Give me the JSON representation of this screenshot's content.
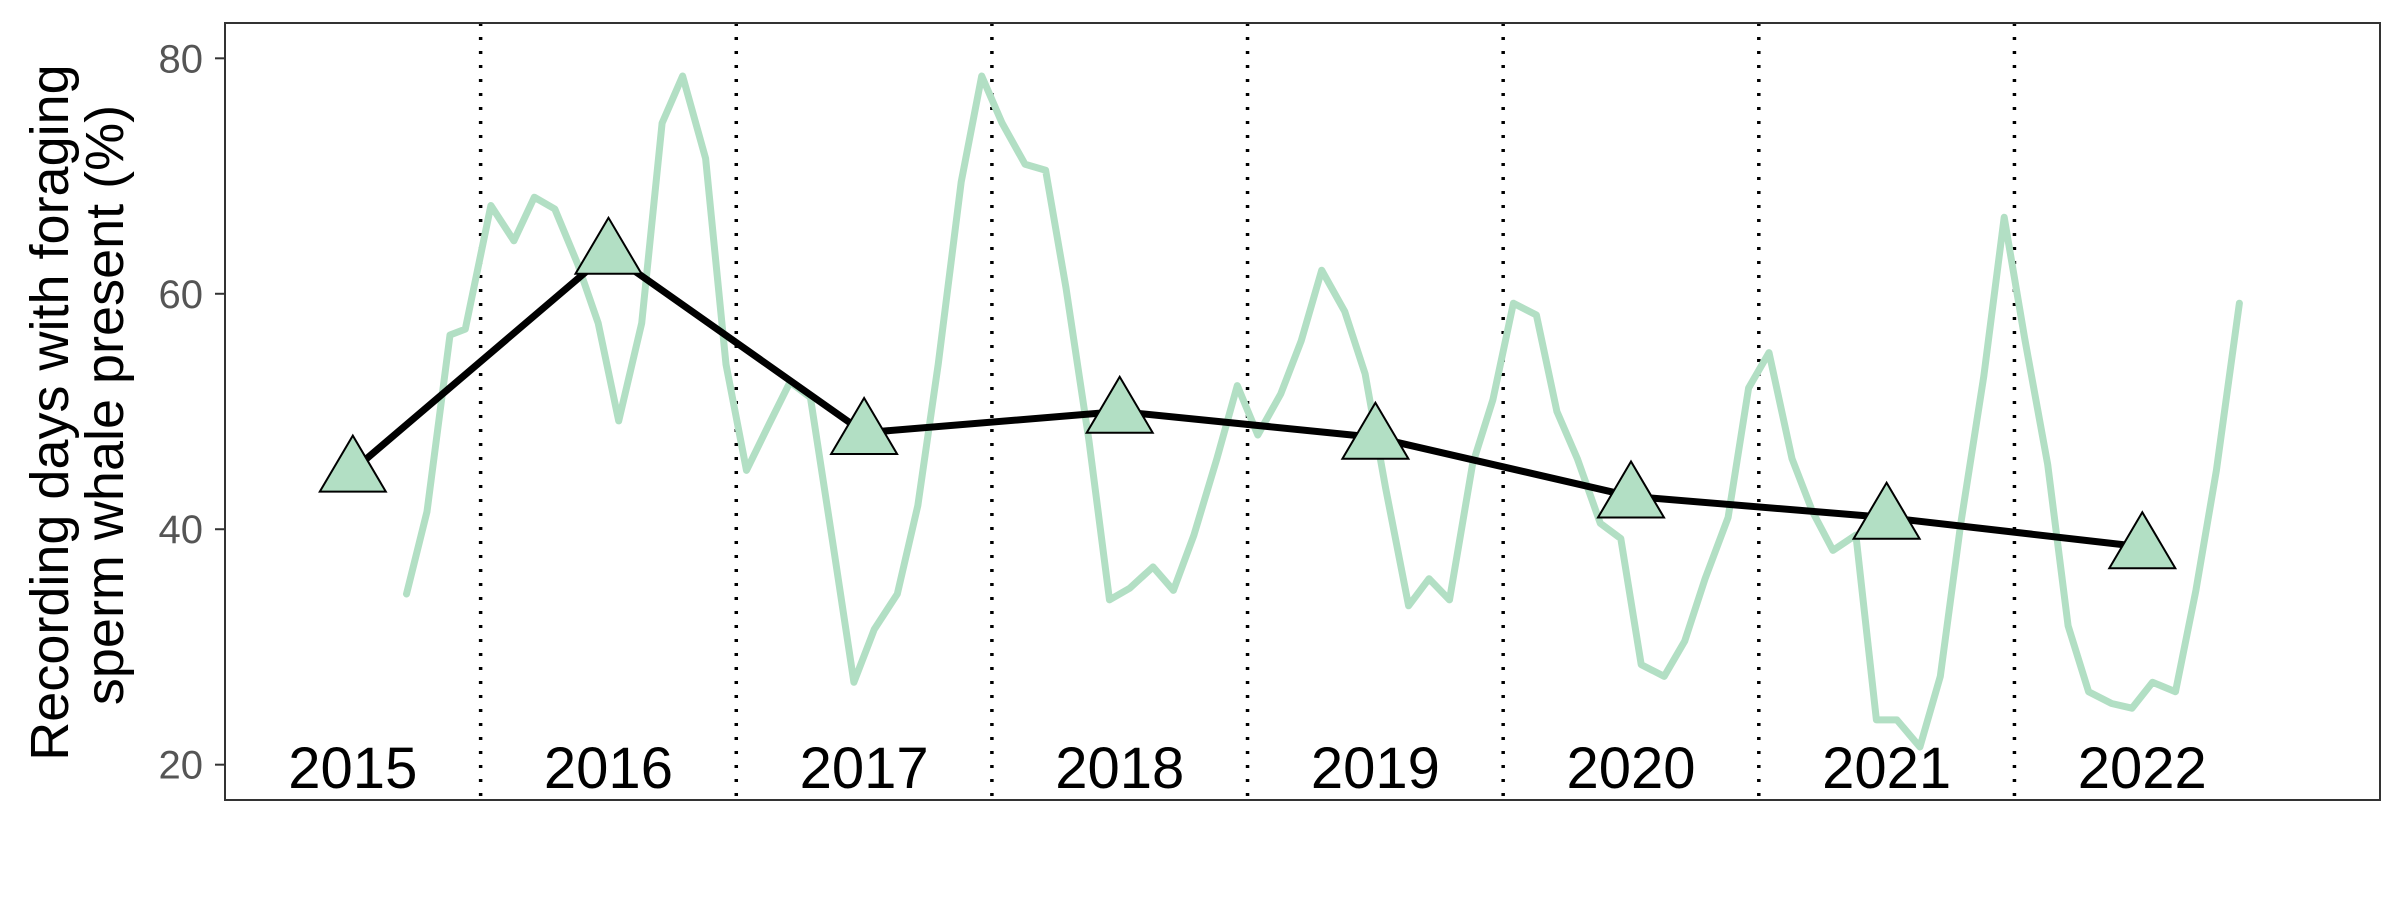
{
  "chart_data": {
    "type": "line",
    "title": "",
    "xlabel": "",
    "ylabel": [
      "Recording days with foraging",
      "sperm whale present (%)"
    ],
    "ylim": [
      17,
      83
    ],
    "yticks": [
      20,
      40,
      60,
      80
    ],
    "xlim": [
      2014.5,
      2022.93
    ],
    "grid": false,
    "year_labels": [
      "2015",
      "2016",
      "2017",
      "2018",
      "2019",
      "2020",
      "2021",
      "2022"
    ],
    "year_label_x": [
      2015.0,
      2016.0,
      2017.0,
      2018.0,
      2019.0,
      2020.0,
      2021.0,
      2022.0
    ],
    "year_separators": [
      2015.5,
      2016.5,
      2017.5,
      2018.5,
      2019.5,
      2020.5,
      2021.5
    ],
    "colors": {
      "monthly": "#b2dfc4",
      "annual": "#000000",
      "marker_fill": "#b2dfc4",
      "marker_stroke": "#000000",
      "separator": "#000000",
      "axis_text": "#555555",
      "panel_border": "#333333"
    },
    "series": [
      {
        "type": "line",
        "x": [
          2015.21,
          2015.29,
          2015.38,
          2015.44,
          2015.54,
          2015.63,
          2015.71,
          2015.79,
          2015.88,
          2015.96,
          2016.04,
          2016.13,
          2016.21,
          2016.29,
          2016.38,
          2016.46,
          2016.54,
          2016.63,
          2016.71,
          2016.79,
          2016.88,
          2016.96,
          2017.04,
          2017.13,
          2017.21,
          2017.29,
          2017.38,
          2017.46,
          2017.54,
          2017.63,
          2017.71,
          2017.79,
          2017.88,
          2017.96,
          2018.04,
          2018.13,
          2018.21,
          2018.29,
          2018.38,
          2018.46,
          2018.54,
          2018.63,
          2018.71,
          2018.79,
          2018.88,
          2018.96,
          2019.04,
          2019.13,
          2019.21,
          2019.29,
          2019.38,
          2019.46,
          2019.54,
          2019.63,
          2019.71,
          2019.79,
          2019.88,
          2019.96,
          2020.04,
          2020.13,
          2020.21,
          2020.29,
          2020.38,
          2020.46,
          2020.54,
          2020.63,
          2020.71,
          2020.79,
          2020.88,
          2020.96,
          2021.04,
          2021.13,
          2021.21,
          2021.29,
          2021.38,
          2021.46,
          2021.54,
          2021.63,
          2021.71,
          2021.79,
          2021.88,
          2021.96,
          2022.04,
          2022.13,
          2022.21,
          2022.29,
          2022.38
        ],
        "y": [
          34.5,
          41.5,
          56.5,
          57,
          67.5,
          64.5,
          68.2,
          67.2,
          62.5,
          57.5,
          49.2,
          57.5,
          74.5,
          78.5,
          71.5,
          54,
          45,
          49,
          52.5,
          51.2,
          38.5,
          27,
          31.5,
          34.5,
          42,
          54,
          69.5,
          78.5,
          74.5,
          71,
          70.5,
          60.5,
          47.5,
          34,
          35,
          36.8,
          34.8,
          39.5,
          46,
          52.2,
          48,
          51.5,
          56,
          62,
          58.5,
          53.2,
          43.5,
          33.5,
          35.8,
          34,
          45.5,
          51,
          59.2,
          58.2,
          50,
          46,
          40.5,
          39.2,
          28.5,
          27.5,
          30.5,
          35.8,
          41,
          52,
          55,
          46,
          41.5,
          38.2,
          39.5,
          23.8,
          23.8,
          21.5,
          27.5,
          40.5,
          53,
          66.5,
          56.2,
          45.5,
          31.8,
          26.2,
          25.2,
          24.8,
          27,
          26.2,
          34.8,
          45,
          59.2
        ]
      },
      {
        "type": "line+markers",
        "marker": "triangle",
        "x": [
          2015.0,
          2016.0,
          2017.0,
          2018.0,
          2019.0,
          2020.0,
          2021.0,
          2022.0
        ],
        "y": [
          45,
          63.5,
          48.2,
          50,
          47.8,
          42.8,
          41,
          38.5
        ]
      }
    ]
  }
}
